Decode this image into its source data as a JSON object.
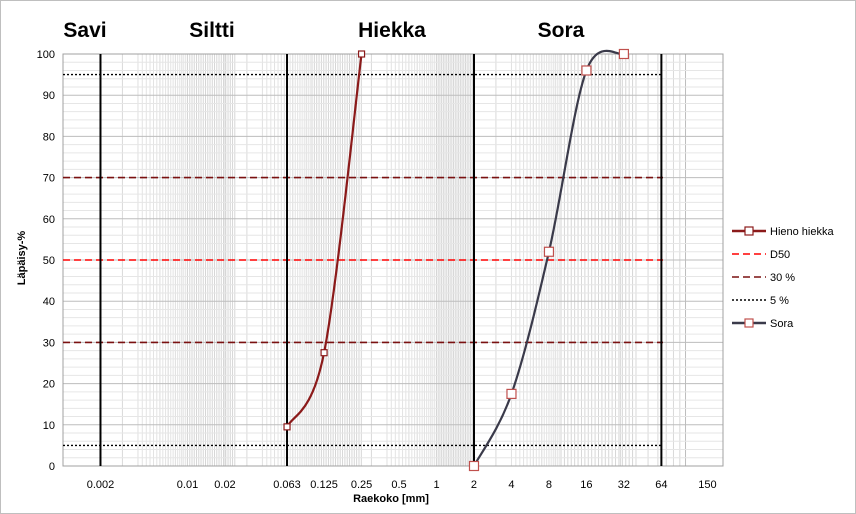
{
  "chart_data": {
    "type": "line",
    "title": "",
    "xlabel": "Raekoko [mm]",
    "ylabel": "Läpäisy-%",
    "x_scale": "log",
    "xlim": [
      0.001,
      200
    ],
    "ylim": [
      0,
      100
    ],
    "x_ticks": [
      {
        "value": 0.002,
        "label": "0.002"
      },
      {
        "value": 0.01,
        "label": "0.01"
      },
      {
        "value": 0.02,
        "label": "0.02"
      },
      {
        "value": 0.063,
        "label": "0.063"
      },
      {
        "value": 0.125,
        "label": "0.125"
      },
      {
        "value": 0.25,
        "label": "0.25"
      },
      {
        "value": 0.5,
        "label": "0.5"
      },
      {
        "value": 1,
        "label": "1"
      },
      {
        "value": 2,
        "label": "2"
      },
      {
        "value": 4,
        "label": "4"
      },
      {
        "value": 8,
        "label": "8"
      },
      {
        "value": 16,
        "label": "16"
      },
      {
        "value": 32,
        "label": "32"
      },
      {
        "value": 64,
        "label": "64"
      },
      {
        "value": 150,
        "label": "150"
      }
    ],
    "y_ticks": [
      0,
      10,
      20,
      30,
      40,
      50,
      60,
      70,
      80,
      90,
      100
    ],
    "zones": [
      {
        "label": "Savi",
        "boundary": 0.002
      },
      {
        "label": "Siltti",
        "boundary": 0.063
      },
      {
        "label": "Hiekka",
        "boundary": 2
      },
      {
        "label": "Sora",
        "boundary": 64
      }
    ],
    "reference_lines": [
      {
        "name": "D50",
        "y": 50,
        "color": "#ff0000",
        "style": "dashed"
      },
      {
        "name": "30 %",
        "y": 30,
        "color": "#7a1010",
        "style": "dashed"
      },
      {
        "name": "30 %",
        "y": 70,
        "color": "#7a1010",
        "style": "dashed"
      },
      {
        "name": "5 %",
        "y": 5,
        "color": "#000000",
        "style": "dotted"
      },
      {
        "name": "5 %",
        "y": 95,
        "color": "#000000",
        "style": "dotted"
      }
    ],
    "series": [
      {
        "name": "Hieno hiekka",
        "color": "#8b1a1a",
        "x": [
          0.063,
          0.125,
          0.25
        ],
        "y": [
          9.5,
          27.5,
          100
        ]
      },
      {
        "name": "Sora",
        "color": "#3a3a4a",
        "x": [
          2,
          4,
          8,
          16,
          32
        ],
        "y": [
          0,
          17.5,
          52,
          96,
          100
        ]
      }
    ],
    "legend": [
      {
        "name": "Hieno hiekka",
        "color": "#8b1a1a",
        "style": "solid-marker"
      },
      {
        "name": "D50",
        "color": "#ff0000",
        "style": "dashed"
      },
      {
        "name": "30 %",
        "color": "#7a1010",
        "style": "dashed"
      },
      {
        "name": "5 %",
        "color": "#000000",
        "style": "dotted"
      },
      {
        "name": "Sora",
        "color": "#3a3a4a",
        "style": "solid-marker"
      }
    ],
    "legend_position": "right",
    "grid": true
  }
}
